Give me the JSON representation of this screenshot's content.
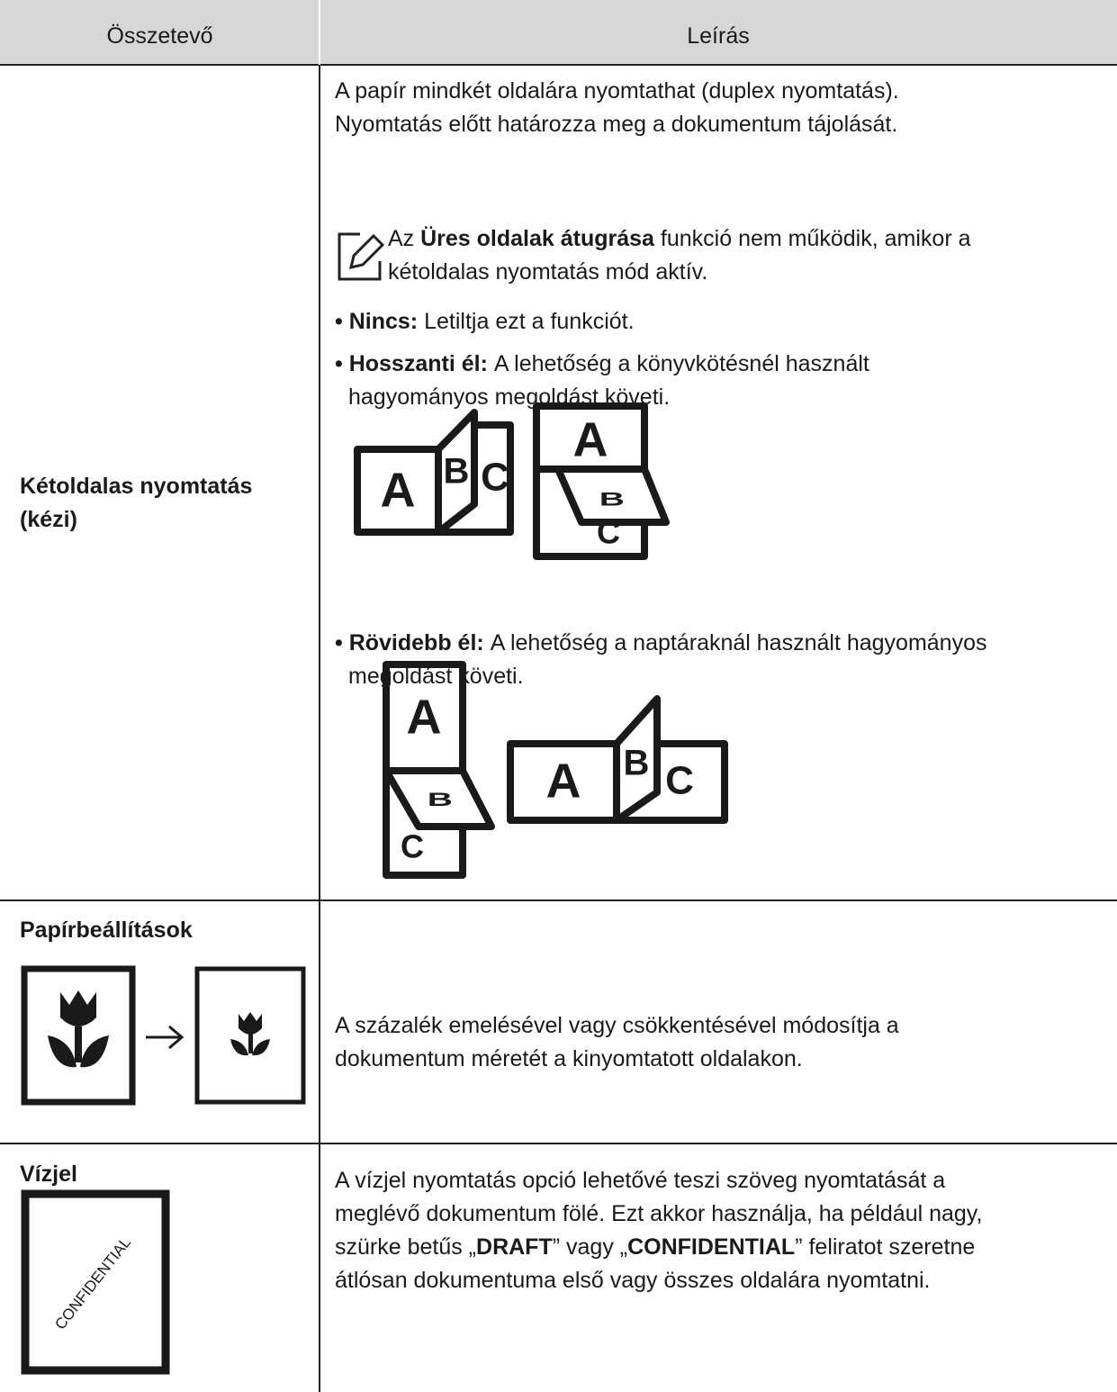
{
  "table": {
    "header": [
      "Összetevő",
      "Leírás"
    ],
    "rows": [
      {
        "component": [
          "Kétoldalas nyomtatás",
          "(kézi)"
        ],
        "intro": [
          "A papír mindkét oldalára nyomtathat (duplex nyomtatás).",
          "Nyomtatás előtt határozza meg a dokumentum tájolását."
        ],
        "note": [
          [
            "Az ",
            {
              "bold": "Üres oldalak átugrása"
            },
            " funkció nem működik, amikor a"
          ],
          [
            "kétoldalas nyomtatás mód aktív."
          ]
        ],
        "options": [
          {
            "label": "Nincs:",
            "lines": [
              "Letiltja ezt a funkciót."
            ]
          },
          {
            "label": "Hosszanti él:",
            "lines": [
              "A lehetőség a könyvkötésnél használt",
              "hagyományos megoldást követi."
            ]
          },
          {
            "label": "Rövidebb él:",
            "lines": [
              "A lehetőség a naptáraknál használt hagyományos",
              "megoldást követi."
            ]
          }
        ],
        "illustration_letters": [
          "A",
          "B",
          "C"
        ]
      },
      {
        "component": [
          "Papírbeállítások"
        ],
        "description": [
          "A százalék emelésével vagy csökkentésével módosítja a",
          "dokumentum méretét a kinyomtatott oldalakon."
        ]
      },
      {
        "component": [
          "Vízjel"
        ],
        "watermark_sample": "CONFIDENTIAL",
        "description": [
          [
            "A vízjel nyomtatás opció lehetővé teszi szöveg nyomtatását a"
          ],
          [
            "meglévő dokumentum fölé. Ezt akkor használja, ha például nagy,"
          ],
          [
            "szürke betűs „",
            {
              "bold": "DRAFT"
            },
            "” vagy „",
            {
              "bold": "CONFIDENTIAL"
            },
            "” feliratot szeretne"
          ],
          [
            "átlósan dokumentuma első vagy összes oldalára nyomtatni."
          ]
        ]
      }
    ]
  }
}
